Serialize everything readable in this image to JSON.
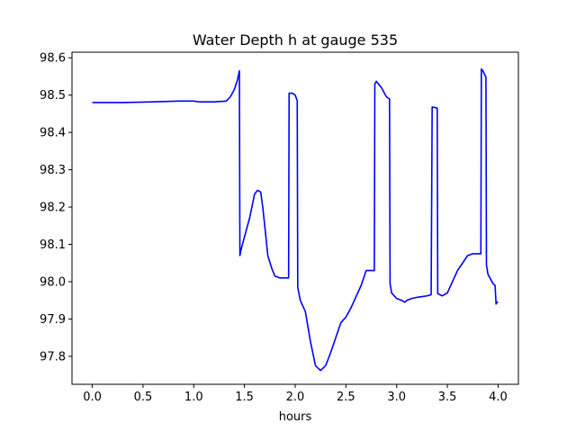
{
  "chart_data": {
    "type": "line",
    "title": "Water Depth h at gauge 535",
    "xlabel": "hours",
    "ylabel": "",
    "xlim": [
      -0.2,
      4.2
    ],
    "ylim": [
      97.725,
      98.615
    ],
    "xticks": [
      0.0,
      0.5,
      1.0,
      1.5,
      2.0,
      2.5,
      3.0,
      3.5,
      4.0
    ],
    "xtick_labels": [
      "0.0",
      "0.5",
      "1.0",
      "1.5",
      "2.0",
      "2.5",
      "3.0",
      "3.5",
      "4.0"
    ],
    "yticks": [
      97.8,
      97.9,
      98.0,
      98.1,
      98.2,
      98.3,
      98.4,
      98.5,
      98.6
    ],
    "ytick_labels": [
      "97.8",
      "97.9",
      "98.0",
      "98.1",
      "98.2",
      "98.3",
      "98.4",
      "98.5",
      "98.6"
    ],
    "grid": false,
    "series": [
      {
        "color": "#0000ff",
        "x": [
          0.0,
          0.3,
          0.6,
          0.85,
          1.0,
          1.05,
          1.2,
          1.32,
          1.36,
          1.4,
          1.43,
          1.45,
          1.455,
          1.47,
          1.5,
          1.55,
          1.6,
          1.63,
          1.66,
          1.68,
          1.7,
          1.73,
          1.77,
          1.8,
          1.85,
          1.9,
          1.935,
          1.94,
          1.97,
          2.0,
          2.02,
          2.025,
          2.05,
          2.1,
          2.15,
          2.2,
          2.25,
          2.3,
          2.35,
          2.4,
          2.45,
          2.5,
          2.55,
          2.6,
          2.65,
          2.7,
          2.75,
          2.78,
          2.785,
          2.8,
          2.85,
          2.9,
          2.93,
          2.935,
          2.95,
          3.0,
          3.05,
          3.08,
          3.1,
          3.15,
          3.2,
          3.25,
          3.3,
          3.34,
          3.35,
          3.355,
          3.4,
          3.405,
          3.45,
          3.5,
          3.55,
          3.6,
          3.65,
          3.7,
          3.75,
          3.8,
          3.83,
          3.835,
          3.85,
          3.88,
          3.885,
          3.9,
          3.95,
          3.97,
          3.98,
          3.99,
          4.0
        ],
        "y": [
          98.48,
          98.48,
          98.482,
          98.484,
          98.484,
          98.482,
          98.482,
          98.484,
          98.495,
          98.515,
          98.54,
          98.565,
          98.07,
          98.09,
          98.12,
          98.17,
          98.235,
          98.245,
          98.24,
          98.2,
          98.15,
          98.07,
          98.035,
          98.015,
          98.01,
          98.01,
          98.01,
          98.505,
          98.505,
          98.5,
          98.485,
          97.985,
          97.95,
          97.92,
          97.84,
          97.775,
          97.762,
          97.775,
          97.81,
          97.85,
          97.89,
          97.905,
          97.93,
          97.96,
          97.99,
          98.03,
          98.03,
          98.03,
          98.53,
          98.537,
          98.52,
          98.495,
          98.49,
          97.995,
          97.97,
          97.955,
          97.95,
          97.945,
          97.95,
          97.955,
          97.958,
          97.96,
          97.962,
          97.965,
          98.468,
          98.468,
          98.465,
          97.968,
          97.962,
          97.97,
          98.0,
          98.03,
          98.05,
          98.07,
          98.075,
          98.075,
          98.075,
          98.57,
          98.565,
          98.548,
          98.045,
          98.02,
          97.995,
          97.99,
          97.94,
          97.945,
          97.945
        ]
      }
    ]
  }
}
